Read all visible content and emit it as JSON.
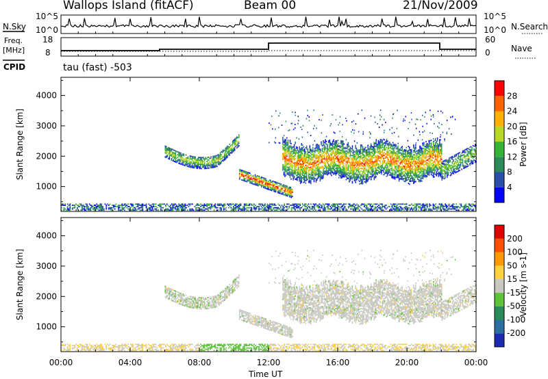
{
  "header": {
    "site": "Wallops Island (fitACF)",
    "beam": "Beam 00",
    "date": "21/Nov/2009"
  },
  "strip_panels": {
    "nsky_label": "N.Sky",
    "nsky_ticks": [
      "10^5",
      "10^0"
    ],
    "nsearch_label": "N.Search",
    "nsearch_ticks": [
      "10^5",
      "10^0"
    ],
    "freq_label_line1": "Freq.",
    "freq_label_line2": "[MHz]",
    "freq_ticks": [
      "18",
      "8"
    ],
    "nave_label": "Nave",
    "nave_ticks": [
      "60",
      "0"
    ],
    "cpid_label": "CPID",
    "cpid_text": "tau (fast) -503"
  },
  "chart_data": [
    {
      "type": "heatmap",
      "name": "Power",
      "ylabel": "Slant Range [km]",
      "ylim": [
        180,
        4600
      ],
      "yticks": [
        "4000",
        "3000",
        "2000",
        "1000"
      ],
      "colorbar_label": "Power [dB]",
      "colorbar_ticks": [
        "28",
        "24",
        "20",
        "16",
        "12",
        "8",
        "4"
      ],
      "colorbar_colors": [
        "#0000ff",
        "#2a4fa8",
        "#2e8a58",
        "#36b336",
        "#b8d828",
        "#ffb000",
        "#ff6400",
        "#ff0000"
      ],
      "echo_regions": [
        {
          "time": [
            6.0,
            10.3
          ],
          "range": [
            1700,
            2700
          ],
          "note": "arc"
        },
        {
          "time": [
            10.3,
            13.4
          ],
          "range": [
            600,
            1500
          ]
        },
        {
          "time": [
            12.8,
            22.0
          ],
          "range": [
            1200,
            2600
          ]
        },
        {
          "time": [
            22.0,
            24.0
          ],
          "range": [
            1100,
            2300
          ]
        },
        {
          "time": [
            0.0,
            24.0
          ],
          "range": [
            200,
            400
          ]
        }
      ]
    },
    {
      "type": "heatmap",
      "name": "Velocity",
      "ylabel": "Slant Range [km]",
      "ylim": [
        180,
        4600
      ],
      "yticks": [
        "4000",
        "3000",
        "2000",
        "1000"
      ],
      "colorbar_label": "Velocity [m s-1]",
      "colorbar_ticks": [
        "200",
        "100",
        "50",
        "15",
        "-15",
        "-50",
        "-100",
        "-200"
      ],
      "colorbar_colors": [
        "#1a2bb0",
        "#2a6fa0",
        "#2e8a58",
        "#5ec23a",
        "#c8c8c0",
        "#ffd040",
        "#ff9a00",
        "#ff5000",
        "#e00000"
      ]
    }
  ],
  "time_axis": {
    "xlim": [
      0,
      24
    ],
    "ticks": [
      "00:00",
      "04:00",
      "08:00",
      "12:00",
      "16:00",
      "20:00",
      "00:00"
    ],
    "title": "Time UT"
  }
}
